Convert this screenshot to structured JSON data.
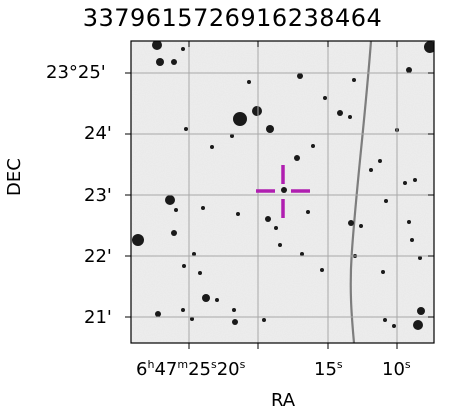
{
  "title": "3379615726916238464",
  "axes": {
    "ylabel": "DEC",
    "xlabel": "RA",
    "dec_ticks": [
      "23°25'",
      "24'",
      "23'",
      "22'",
      "21'"
    ],
    "ra_ticks": [
      {
        "h": "6",
        "m": "47",
        "s": "25",
        "tail": "20"
      },
      {
        "s": "15"
      },
      {
        "s": "10"
      }
    ]
  },
  "colors": {
    "background": "#ffffff",
    "sky": "#efefef",
    "grid": "#a8a8a8",
    "crosshair": "#b01fb0",
    "star": "#1a1a1a"
  }
}
